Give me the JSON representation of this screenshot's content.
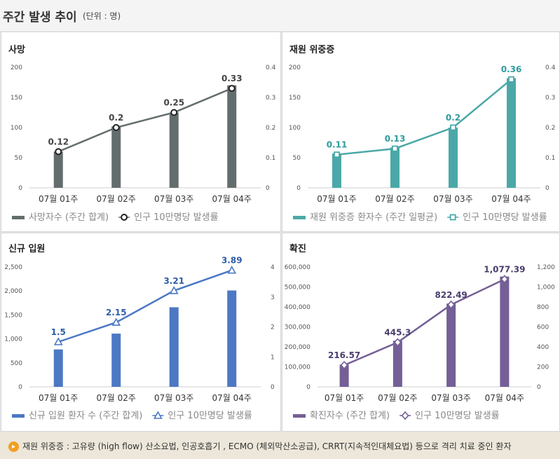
{
  "header": {
    "title": "주간 발생 추이",
    "unit": "(단위 : 명)"
  },
  "chart_data": [
    {
      "type": "bar",
      "title": "사망",
      "color": "#646d6d",
      "categories": [
        "07월 01주",
        "07월 02주",
        "07월 03주",
        "07월 04주"
      ],
      "bar_series": {
        "name": "사망자수 (주간 합계)",
        "values": [
          60,
          102,
          125,
          170
        ]
      },
      "line_series": {
        "name": "인구 10만명당 발생률",
        "values": [
          0.12,
          0.2,
          0.25,
          0.33
        ],
        "labels": [
          "0.12",
          "0.2",
          "0.25",
          "0.33"
        ],
        "marker": "circle"
      },
      "ylim_left": [
        0,
        200
      ],
      "yticks_left": [
        "0",
        "50",
        "100",
        "150",
        "200"
      ],
      "ylim_right": [
        0,
        0.4
      ],
      "yticks_right": [
        "0",
        "0.1",
        "0.2",
        "0.3",
        "0.4"
      ],
      "label_color": "#444444"
    },
    {
      "type": "bar",
      "title": "재원 위중증",
      "color": "#4ba8a8",
      "categories": [
        "07월 01주",
        "07월 02주",
        "07월 03주",
        "07월 04주"
      ],
      "bar_series": {
        "name": "재원 위중증 환자수 (주간 일평균)",
        "values": [
          57,
          67,
          100,
          182
        ]
      },
      "line_series": {
        "name": "인구 10만명당 발생률",
        "values": [
          0.11,
          0.13,
          0.2,
          0.36
        ],
        "labels": [
          "0.11",
          "0.13",
          "0.2",
          "0.36"
        ],
        "marker": "square"
      },
      "ylim_left": [
        0,
        200
      ],
      "yticks_left": [
        "0",
        "50",
        "100",
        "150",
        "200"
      ],
      "ylim_right": [
        0,
        0.4
      ],
      "yticks_right": [
        "0",
        "0.1",
        "0.2",
        "0.3",
        "0.4"
      ],
      "label_color": "#2f9c9c"
    },
    {
      "type": "bar",
      "title": "신규 입원",
      "color": "#4c78c4",
      "categories": [
        "07월 01주",
        "07월 02주",
        "07월 03주",
        "07월 04주"
      ],
      "bar_series": {
        "name": "신규 입원 환자 수 (주간 합계)",
        "values": [
          780,
          1110,
          1660,
          2010
        ]
      },
      "line_series": {
        "name": "인구 10만명당 발생률",
        "values": [
          1.5,
          2.15,
          3.21,
          3.89
        ],
        "labels": [
          "1.5",
          "2.15",
          "3.21",
          "3.89"
        ],
        "marker": "triangle"
      },
      "ylim_left": [
        0,
        2500
      ],
      "yticks_left": [
        "0",
        "500",
        "1,000",
        "1,500",
        "2,000",
        "2,500"
      ],
      "ylim_right": [
        0,
        4
      ],
      "yticks_right": [
        "0",
        "1",
        "2",
        "3",
        "4"
      ],
      "label_color": "#2e5ea8"
    },
    {
      "type": "bar",
      "title": "확진",
      "color": "#745f96",
      "categories": [
        "07월 01주",
        "07월 02주",
        "07월 03주",
        "07월 04주"
      ],
      "bar_series": {
        "name": "확진자수 (주간 합계)",
        "values": [
          111000,
          231000,
          417000,
          552000
        ]
      },
      "line_series": {
        "name": "인구 10만명당 발생률",
        "values": [
          216.57,
          445.3,
          822.49,
          1077.39
        ],
        "labels": [
          "216.57",
          "445.3",
          "822.49",
          "1,077.39"
        ],
        "marker": "diamond"
      },
      "ylim_left": [
        0,
        600000
      ],
      "yticks_left": [
        "0",
        "100,000",
        "200,000",
        "300,000",
        "400,000",
        "500,000",
        "600,000"
      ],
      "ylim_right": [
        0,
        1200
      ],
      "yticks_right": [
        "0",
        "200",
        "400",
        "600",
        "800",
        "1,000",
        "1,200"
      ],
      "label_color": "#4a3d6e"
    }
  ],
  "notes": [
    "재원 위중증 : 고유량 (high flow) 산소요법, 인공호흡기 , ECMO (체외막산소공급), CRRT(지속적인대체요법) 등으로 격리 치료 중인 환자"
  ],
  "note_icon": "speaker-icon"
}
